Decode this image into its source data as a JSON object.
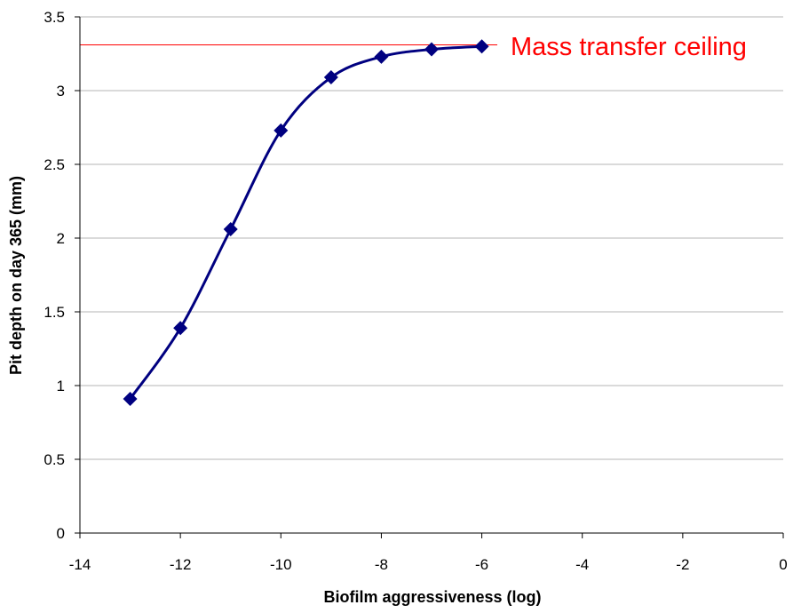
{
  "chart_data": {
    "type": "line",
    "title": "",
    "xlabel": "Biofilm aggressiveness (log)",
    "ylabel": "Pit depth on day 365 (mm)",
    "xlim": [
      -14,
      0
    ],
    "ylim": [
      0,
      3.5
    ],
    "x_ticks": [
      -14,
      -12,
      -10,
      -8,
      -6,
      -4,
      -2,
      0
    ],
    "y_ticks": [
      0,
      0.5,
      1,
      1.5,
      2,
      2.5,
      3,
      3.5
    ],
    "grid": "horizontal",
    "series": [
      {
        "x": [
          -13,
          -12,
          -11,
          -10,
          -9,
          -8,
          -7,
          -6
        ],
        "values": [
          0.91,
          1.39,
          2.06,
          2.73,
          3.09,
          3.23,
          3.28,
          3.3
        ],
        "color": "#000080",
        "marker": "diamond",
        "smooth": true
      }
    ],
    "reference_line": {
      "y": 3.31,
      "label": "Mass transfer ceiling",
      "color": "#ff0000"
    }
  }
}
